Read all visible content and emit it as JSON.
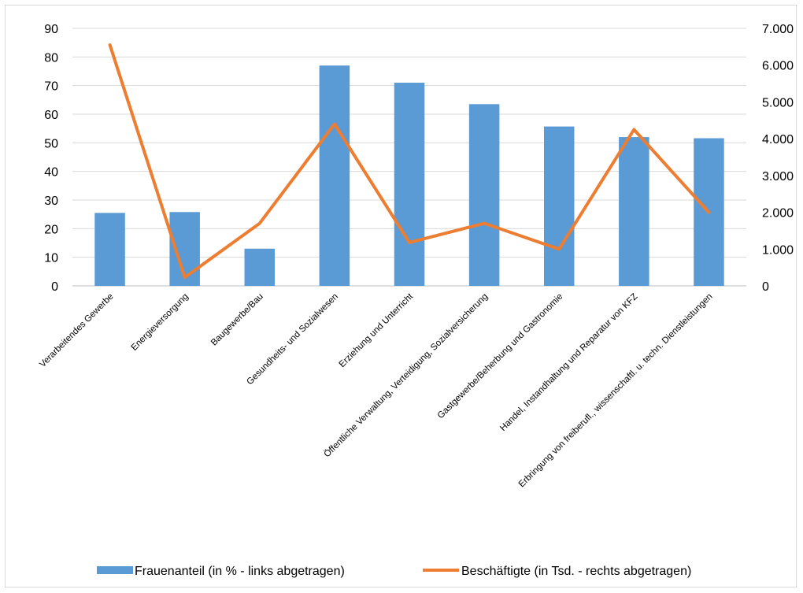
{
  "chart_data": {
    "type": "bar",
    "categories": [
      "Verarbeitendes Gewerbe",
      "Energieversorgung",
      "Baugewerbe/Bau",
      "Gesundheits- und Sozialwesen",
      "Erziehung und Unterricht",
      "Öffentliche Verwaltung, Verteidigung, Sozialversicherung",
      "Gastgewerbe/Beherbung und Gastronomie",
      "Handel, Instandhaltung und Reparatur von KFZ",
      "Erbringung von freiberufl., wissenschaftl. u. techn. Dienstleistungen"
    ],
    "series": [
      {
        "name": "Frauenanteil (in % - links abgetragen)",
        "type": "bar",
        "axis": "left",
        "color": "#5b9bd5",
        "values": [
          25.5,
          25.8,
          13,
          77,
          71,
          63.5,
          55.7,
          52,
          51.6
        ]
      },
      {
        "name": "Beschäftigte (in Tsd. - rechts abgetragen)",
        "type": "line",
        "axis": "right",
        "color": "#ed7d31",
        "values": [
          6550,
          230,
          1700,
          4400,
          1180,
          1700,
          1000,
          4250,
          2000
        ]
      }
    ],
    "y_left": {
      "min": 0,
      "max": 90,
      "ticks": [
        "0",
        "10",
        "20",
        "30",
        "40",
        "50",
        "60",
        "70",
        "80",
        "90"
      ]
    },
    "y_right": {
      "min": 0,
      "max": 7000,
      "ticks": [
        "0",
        "1.000",
        "2.000",
        "3.000",
        "4.000",
        "5.000",
        "6.000",
        "7.000"
      ]
    },
    "grid": true,
    "legend_position": "bottom"
  }
}
